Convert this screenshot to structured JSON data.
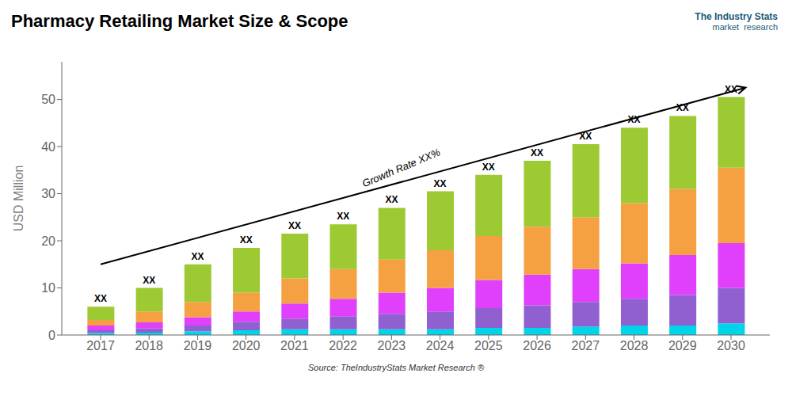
{
  "chart_data": {
    "type": "bar",
    "stacked": true,
    "title": "Pharmacy Retailing Market Size & Scope",
    "ylabel": "USD Million",
    "source": "Source: TheIndustryStats Market Research ®",
    "logo": {
      "lines": [
        "The Industry Stats",
        "market  research"
      ],
      "color": "#1a5c75"
    },
    "x": [
      2017,
      2018,
      2019,
      2020,
      2021,
      2022,
      2023,
      2024,
      2025,
      2026,
      2027,
      2028,
      2029,
      2030
    ],
    "xlim": [
      2016.2,
      2030.8
    ],
    "xticks": [
      2017,
      2018,
      2019,
      2020,
      2021,
      2022,
      2023,
      2024,
      2025,
      2026,
      2027,
      2028,
      2029,
      2030
    ],
    "series": [
      {
        "color": "#00d4e8",
        "values": [
          0.4,
          0.5,
          0.8,
          1.0,
          1.2,
          1.2,
          1.2,
          1.2,
          1.5,
          1.5,
          1.8,
          2.0,
          2.0,
          2.5
        ]
      },
      {
        "color": "#9060d0",
        "values": [
          0.6,
          0.9,
          1.2,
          1.8,
          2.3,
          2.8,
          3.3,
          3.8,
          4.2,
          4.8,
          5.2,
          5.7,
          6.5,
          7.5
        ]
      },
      {
        "color": "#e040fb",
        "values": [
          1.0,
          1.3,
          1.8,
          2.2,
          3.2,
          3.7,
          4.5,
          5.0,
          6.0,
          6.5,
          7.0,
          7.5,
          8.5,
          9.5
        ]
      },
      {
        "color": "#f5a142",
        "values": [
          1.2,
          2.3,
          3.2,
          4.0,
          5.3,
          6.3,
          7.0,
          8.0,
          9.3,
          10.2,
          11.0,
          12.8,
          14.0,
          16.0
        ]
      },
      {
        "color": "#9dc932",
        "values": [
          2.8,
          5.0,
          8.0,
          9.5,
          9.5,
          9.5,
          11.0,
          12.5,
          13.0,
          14.0,
          15.5,
          16.0,
          15.5,
          15.0
        ]
      }
    ],
    "ylim": [
      0,
      58
    ],
    "yticks": [
      0,
      10,
      20,
      30,
      40,
      50
    ],
    "grid": false,
    "annotations": [
      {
        "text": "XX",
        "x": 2017,
        "y": 6.0
      },
      {
        "text": "XX",
        "x": 2018,
        "y": 10.0
      },
      {
        "text": "XX",
        "x": 2019,
        "y": 15.0
      },
      {
        "text": "XX",
        "x": 2020,
        "y": 18.5
      },
      {
        "text": "XX",
        "x": 2021,
        "y": 21.5
      },
      {
        "text": "XX",
        "x": 2022,
        "y": 23.5
      },
      {
        "text": "XX",
        "x": 2023,
        "y": 27.0
      },
      {
        "text": "XX",
        "x": 2024,
        "y": 30.5
      },
      {
        "text": "XX",
        "x": 2025,
        "y": 34.0
      },
      {
        "text": "XX",
        "x": 2026,
        "y": 37.0
      },
      {
        "text": "XX",
        "x": 2027,
        "y": 40.5
      },
      {
        "text": "XX",
        "x": 2028,
        "y": 44.0
      },
      {
        "text": "XX",
        "x": 2029,
        "y": 46.5
      },
      {
        "text": "XX",
        "x": 2030,
        "y": 50.5
      },
      {
        "text": "Growth Rate XX%",
        "x": 2023.2,
        "y": 35.5,
        "arrow_start": [
          2017.0,
          15.0
        ],
        "arrow_end": [
          2030.3,
          52.5
        ]
      }
    ]
  }
}
